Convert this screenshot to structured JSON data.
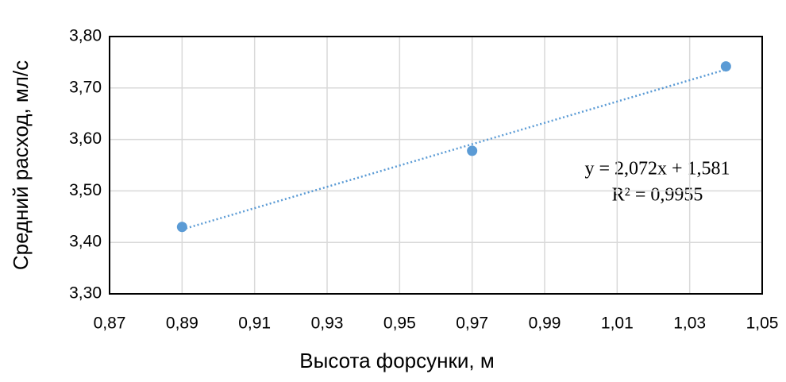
{
  "chart_data": {
    "type": "scatter",
    "x_label": "Высота форсунки, м",
    "y_label": "Средний расход, мл/с",
    "x": [
      0.89,
      0.97,
      1.04
    ],
    "values": [
      3.43,
      3.578,
      3.742
    ],
    "color": "#5b9bd5",
    "xlim": [
      0.87,
      1.05
    ],
    "ylim": [
      3.3,
      3.8
    ],
    "xticks": [
      {
        "value": 0.87,
        "label": "0,87"
      },
      {
        "value": 0.89,
        "label": "0,89"
      },
      {
        "value": 0.91,
        "label": "0,91"
      },
      {
        "value": 0.93,
        "label": "0,93"
      },
      {
        "value": 0.95,
        "label": "0,95"
      },
      {
        "value": 0.97,
        "label": "0,97"
      },
      {
        "value": 0.99,
        "label": "0,99"
      },
      {
        "value": 1.01,
        "label": "1,01"
      },
      {
        "value": 1.03,
        "label": "1,03"
      },
      {
        "value": 1.05,
        "label": "1,05"
      }
    ],
    "yticks": [
      {
        "value": 3.3,
        "label": "3,30"
      },
      {
        "value": 3.4,
        "label": "3,40"
      },
      {
        "value": 3.5,
        "label": "3,50"
      },
      {
        "value": 3.6,
        "label": "3,60"
      },
      {
        "value": 3.7,
        "label": "3,70"
      },
      {
        "value": 3.8,
        "label": "3,80"
      }
    ],
    "grid": true,
    "trendline": {
      "slope": 2.072,
      "intercept": 1.581,
      "equation": "y = 2,072x + 1,581",
      "r2": "R² = 0,9955"
    }
  }
}
